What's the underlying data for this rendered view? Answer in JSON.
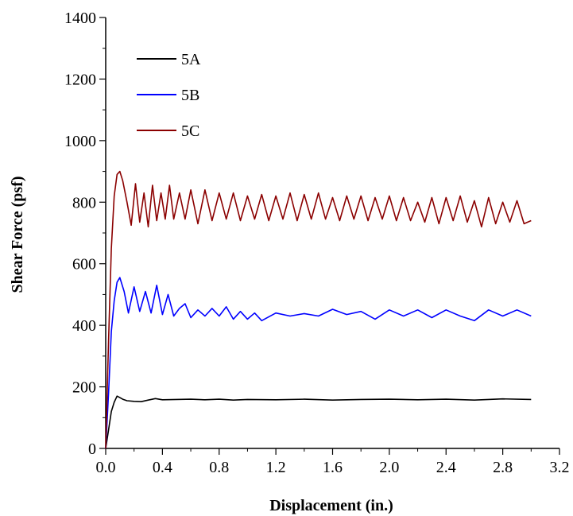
{
  "chart_data": {
    "type": "line",
    "xlabel": "Displacement (in.)",
    "ylabel": "Shear Force (psf)",
    "xlim": [
      0,
      3.2
    ],
    "ylim": [
      0,
      1400
    ],
    "x_ticks": [
      0.0,
      0.4,
      0.8,
      1.2,
      1.6,
      2.0,
      2.4,
      2.8,
      3.2
    ],
    "x_tick_labels": [
      "0.0",
      "0.4",
      "0.8",
      "1.2",
      "1.6",
      "2.0",
      "2.4",
      "2.8",
      "3.2"
    ],
    "y_ticks": [
      0,
      200,
      400,
      600,
      800,
      1000,
      1200,
      1400
    ],
    "y_tick_labels": [
      "0",
      "200",
      "400",
      "600",
      "800",
      "1000",
      "1200",
      "1400"
    ],
    "grid": false,
    "legend_position": "top-left",
    "series": [
      {
        "name": "5A",
        "color": "#000000",
        "x": [
          0,
          0.02,
          0.04,
          0.06,
          0.08,
          0.1,
          0.12,
          0.15,
          0.2,
          0.25,
          0.3,
          0.35,
          0.4,
          0.5,
          0.6,
          0.7,
          0.8,
          0.9,
          1.0,
          1.2,
          1.4,
          1.6,
          1.8,
          2.0,
          2.2,
          2.4,
          2.6,
          2.8,
          3.0
        ],
        "y": [
          0,
          60,
          120,
          150,
          170,
          165,
          160,
          155,
          153,
          152,
          157,
          162,
          158,
          159,
          160,
          158,
          160,
          157,
          159,
          158,
          160,
          157,
          159,
          160,
          158,
          160,
          157,
          161,
          159
        ]
      },
      {
        "name": "5B",
        "color": "#0000ff",
        "x": [
          0,
          0.02,
          0.04,
          0.06,
          0.08,
          0.1,
          0.13,
          0.16,
          0.2,
          0.24,
          0.28,
          0.32,
          0.36,
          0.4,
          0.44,
          0.48,
          0.52,
          0.56,
          0.6,
          0.65,
          0.7,
          0.75,
          0.8,
          0.85,
          0.9,
          0.95,
          1.0,
          1.05,
          1.1,
          1.2,
          1.3,
          1.4,
          1.5,
          1.6,
          1.7,
          1.8,
          1.9,
          2.0,
          2.1,
          2.2,
          2.3,
          2.4,
          2.5,
          2.6,
          2.7,
          2.8,
          2.9,
          3.0
        ],
        "y": [
          0,
          180,
          380,
          480,
          540,
          555,
          510,
          440,
          525,
          445,
          510,
          440,
          530,
          435,
          500,
          430,
          455,
          470,
          425,
          450,
          430,
          455,
          430,
          460,
          420,
          445,
          420,
          440,
          415,
          440,
          430,
          438,
          430,
          452,
          435,
          445,
          420,
          450,
          430,
          450,
          425,
          450,
          430,
          415,
          450,
          430,
          450,
          430
        ]
      },
      {
        "name": "5C",
        "color": "#8b0000",
        "x": [
          0,
          0.02,
          0.04,
          0.06,
          0.08,
          0.1,
          0.12,
          0.15,
          0.18,
          0.21,
          0.24,
          0.27,
          0.3,
          0.33,
          0.36,
          0.39,
          0.42,
          0.45,
          0.48,
          0.52,
          0.56,
          0.6,
          0.65,
          0.7,
          0.75,
          0.8,
          0.85,
          0.9,
          0.95,
          1.0,
          1.05,
          1.1,
          1.15,
          1.2,
          1.25,
          1.3,
          1.35,
          1.4,
          1.45,
          1.5,
          1.55,
          1.6,
          1.65,
          1.7,
          1.75,
          1.8,
          1.85,
          1.9,
          1.95,
          2.0,
          2.05,
          2.1,
          2.15,
          2.2,
          2.25,
          2.3,
          2.35,
          2.4,
          2.45,
          2.5,
          2.55,
          2.6,
          2.65,
          2.7,
          2.75,
          2.8,
          2.85,
          2.9,
          2.95,
          3.0
        ],
        "y": [
          0,
          350,
          650,
          820,
          890,
          900,
          870,
          800,
          725,
          860,
          735,
          830,
          720,
          855,
          740,
          830,
          745,
          855,
          745,
          830,
          745,
          840,
          730,
          840,
          740,
          830,
          745,
          830,
          740,
          820,
          745,
          825,
          740,
          820,
          745,
          830,
          740,
          825,
          745,
          830,
          745,
          815,
          740,
          820,
          745,
          820,
          740,
          815,
          745,
          820,
          740,
          815,
          740,
          800,
          735,
          815,
          730,
          815,
          740,
          820,
          735,
          805,
          720,
          815,
          730,
          800,
          735,
          805,
          730,
          740
        ]
      }
    ]
  }
}
